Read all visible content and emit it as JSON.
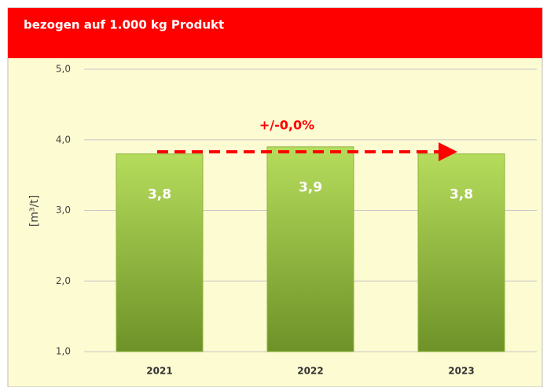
{
  "chart_data": {
    "type": "bar",
    "title": "bezogen auf 1.000 kg Produkt",
    "y_label": "[m³/t]",
    "annotation": "+/-0,0%",
    "categories": [
      "2021",
      "2022",
      "2023"
    ],
    "values": [
      3.8,
      3.9,
      3.8
    ],
    "value_labels": [
      "3,8",
      "3,9",
      "3,8"
    ],
    "color": "#8db33a",
    "ylim": [
      1,
      5
    ],
    "yticks": [
      {
        "value": 1,
        "label": "1,0"
      },
      {
        "value": 2,
        "label": "2,0"
      },
      {
        "value": 3,
        "label": "3,0"
      },
      {
        "value": 4,
        "label": "4,0"
      },
      {
        "value": 5,
        "label": "5,0"
      }
    ],
    "grid": true
  }
}
